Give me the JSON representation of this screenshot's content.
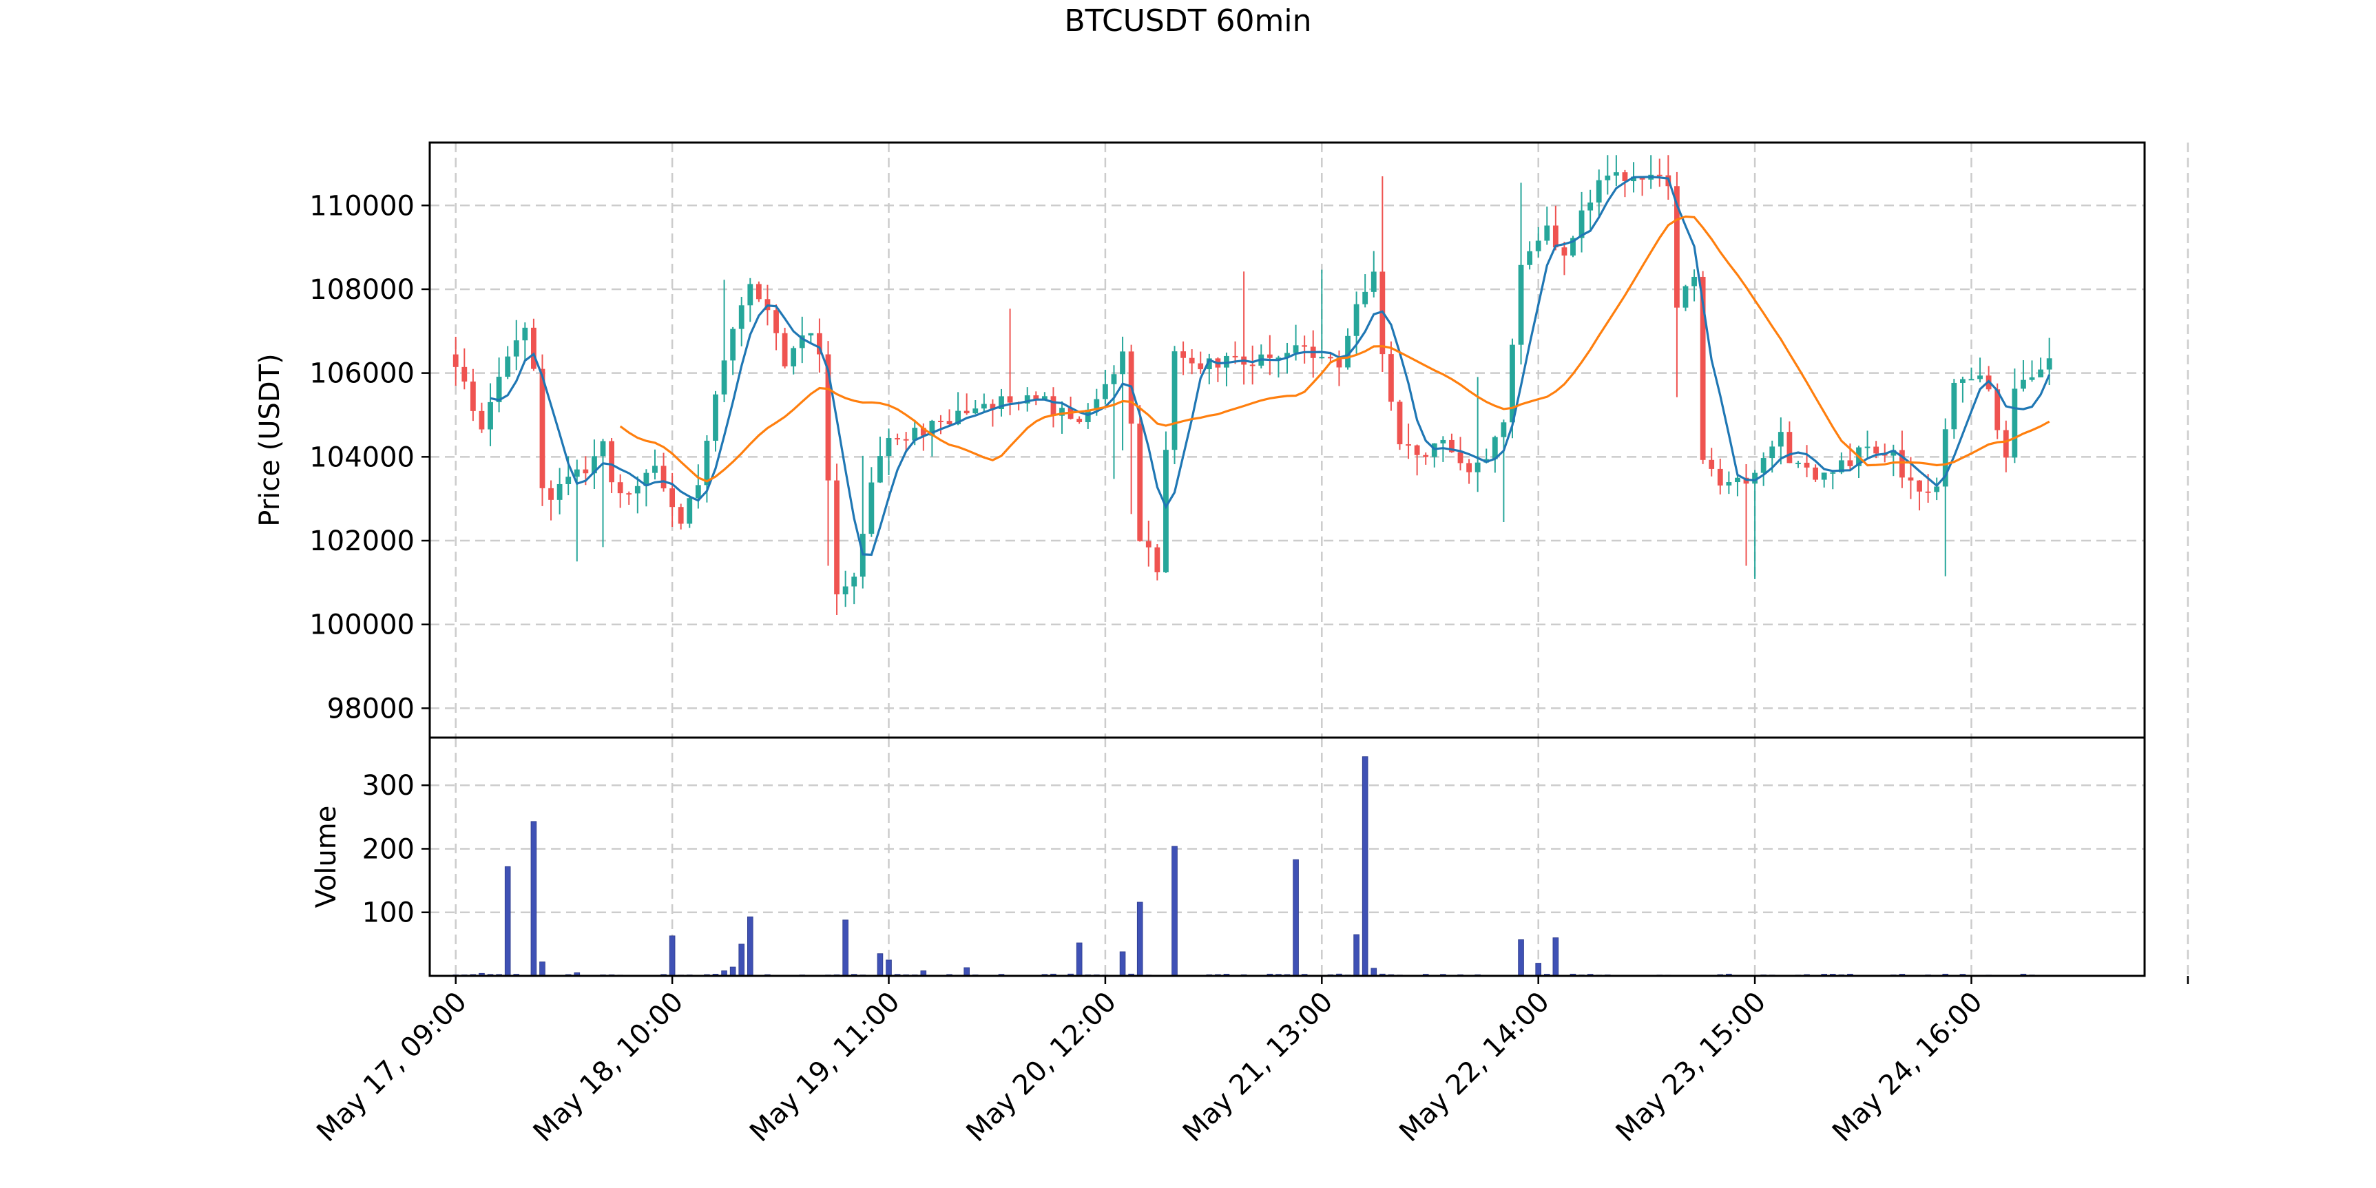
{
  "chart_data": {
    "type": "candlestick",
    "title": "BTCUSDT 60min",
    "colors": {
      "up": "#26a69a",
      "down": "#ef5350",
      "ma_fast": "#1f77b4",
      "ma_slow": "#ff7f0e",
      "volume": "#3f51b5",
      "grid": "#cccccc"
    },
    "grid": true,
    "price_panel": {
      "ylabel": "Price (USDT)",
      "ylim": [
        97300,
        111500
      ],
      "yticks": [
        98000,
        100000,
        102000,
        104000,
        106000,
        108000,
        110000
      ],
      "ytick_labels": [
        "98000",
        "100000",
        "102000",
        "104000",
        "106000",
        "108000",
        "110000"
      ]
    },
    "volume_panel": {
      "ylabel": "Volume",
      "ylim": [
        0,
        375
      ],
      "yticks": [
        100,
        200,
        300
      ],
      "ytick_labels": [
        "100",
        "200",
        "300"
      ]
    },
    "x": {
      "start": "May 17, 09:00",
      "interval_hours": 1,
      "count": 185,
      "xlim": [
        -3,
        195
      ],
      "tick_index": [
        0,
        25,
        50,
        75,
        100,
        125,
        150,
        175,
        200
      ],
      "tick_labels": [
        "May 17, 09:00",
        "May 18, 10:00",
        "May 19, 11:00",
        "May 20, 12:00",
        "May 21, 13:00",
        "May 22, 14:00",
        "May 23, 15:00",
        "May 24, 16:00",
        ""
      ]
    },
    "price_anchors": [
      [
        0,
        106200
      ],
      [
        3,
        104800
      ],
      [
        4,
        105300
      ],
      [
        6,
        106500
      ],
      [
        8,
        107000
      ],
      [
        9,
        106000
      ],
      [
        10,
        103300
      ],
      [
        11,
        102900
      ],
      [
        13,
        103500
      ],
      [
        15,
        103600
      ],
      [
        17,
        104300
      ],
      [
        18,
        103300
      ],
      [
        20,
        103300
      ],
      [
        23,
        103800
      ],
      [
        26,
        102500
      ],
      [
        28,
        103400
      ],
      [
        30,
        105400
      ],
      [
        32,
        107000
      ],
      [
        34,
        108000
      ],
      [
        36,
        107400
      ],
      [
        38,
        106300
      ],
      [
        40,
        107000
      ],
      [
        42,
        106600
      ],
      [
        44,
        100600
      ],
      [
        46,
        101000
      ],
      [
        48,
        103500
      ],
      [
        50,
        104400
      ],
      [
        53,
        104600
      ],
      [
        56,
        104800
      ],
      [
        60,
        105200
      ],
      [
        64,
        105300
      ],
      [
        68,
        105300
      ],
      [
        72,
        104700
      ],
      [
        75,
        105600
      ],
      [
        77,
        106600
      ],
      [
        78,
        104800
      ],
      [
        79,
        102100
      ],
      [
        81,
        101400
      ],
      [
        83,
        106600
      ],
      [
        86,
        106200
      ],
      [
        89,
        106300
      ],
      [
        92,
        106300
      ],
      [
        95,
        106500
      ],
      [
        98,
        106600
      ],
      [
        100,
        106400
      ],
      [
        102,
        106200
      ],
      [
        104,
        107600
      ],
      [
        106,
        108500
      ],
      [
        107,
        106500
      ],
      [
        109,
        104300
      ],
      [
        111,
        104000
      ],
      [
        114,
        104300
      ],
      [
        117,
        103800
      ],
      [
        119,
        104000
      ],
      [
        121,
        104900
      ],
      [
        123,
        108500
      ],
      [
        124,
        109000
      ],
      [
        126,
        109500
      ],
      [
        128,
        108800
      ],
      [
        130,
        109800
      ],
      [
        132,
        110600
      ],
      [
        136,
        110800
      ],
      [
        140,
        110600
      ],
      [
        141,
        107500
      ],
      [
        143,
        108300
      ],
      [
        144,
        103900
      ],
      [
        146,
        103300
      ],
      [
        150,
        103500
      ],
      [
        153,
        104700
      ],
      [
        154,
        103800
      ],
      [
        157,
        103500
      ],
      [
        160,
        103800
      ],
      [
        163,
        104200
      ],
      [
        166,
        104000
      ],
      [
        168,
        103300
      ],
      [
        171,
        103300
      ],
      [
        173,
        105800
      ],
      [
        176,
        106000
      ],
      [
        177,
        105600
      ],
      [
        179,
        104000
      ],
      [
        180,
        105600
      ],
      [
        183,
        106200
      ],
      [
        186,
        106700
      ],
      [
        190,
        106700
      ],
      [
        193,
        106500
      ]
    ],
    "volume_spikes": [
      [
        6,
        172
      ],
      [
        9,
        243
      ],
      [
        10,
        22
      ],
      [
        25,
        63
      ],
      [
        33,
        50
      ],
      [
        34,
        93
      ],
      [
        32,
        14
      ],
      [
        45,
        88
      ],
      [
        49,
        35
      ],
      [
        50,
        25
      ],
      [
        54,
        8
      ],
      [
        59,
        13
      ],
      [
        72,
        52
      ],
      [
        77,
        38
      ],
      [
        79,
        116
      ],
      [
        83,
        204
      ],
      [
        97,
        183
      ],
      [
        104,
        65
      ],
      [
        105,
        345
      ],
      [
        106,
        12
      ],
      [
        123,
        57
      ],
      [
        125,
        20
      ],
      [
        127,
        60
      ],
      [
        31,
        8
      ],
      [
        3,
        4
      ],
      [
        14,
        5
      ]
    ],
    "series": [
      {
        "name": "",
        "kind": "ma_fast",
        "window": 5
      },
      {
        "name": "",
        "kind": "ma_slow",
        "window": 20
      }
    ]
  }
}
